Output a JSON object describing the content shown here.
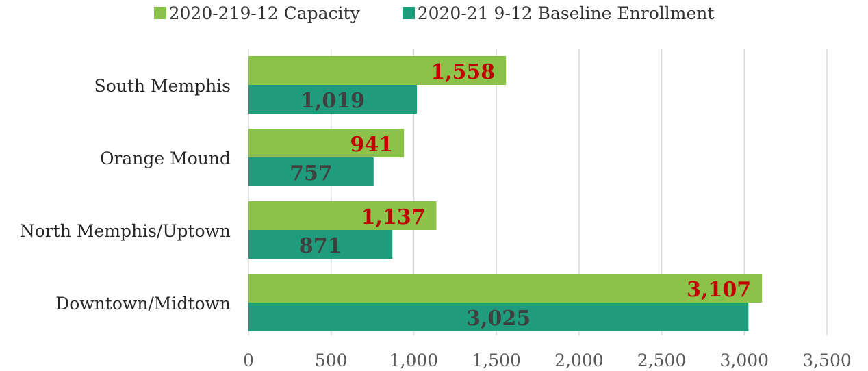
{
  "colors": {
    "capacity": "#8bc34a",
    "enrollment": "#1f9c7c",
    "capacity_label": "#c00000",
    "enrollment_label": "#404040",
    "grid": "#d9d9d9"
  },
  "chart_data": {
    "type": "bar",
    "orientation": "horizontal",
    "categories": [
      "South Memphis",
      "Orange Mound",
      "North Memphis/Uptown",
      "Downtown/Midtown"
    ],
    "series": [
      {
        "name": "2020-219-12 Capacity",
        "values": [
          1558,
          941,
          1137,
          3107
        ],
        "labels": [
          "1,558",
          "941",
          "1,137",
          "3,107"
        ]
      },
      {
        "name": "2020-21 9-12 Baseline Enrollment",
        "values": [
          1019,
          757,
          871,
          3025
        ],
        "labels": [
          "1,019",
          "757",
          "871",
          "3,025"
        ]
      }
    ],
    "xlim": [
      0,
      3500
    ],
    "xticks": [
      0,
      500,
      1000,
      1500,
      2000,
      2500,
      3000,
      3500
    ],
    "xtick_labels": [
      "0",
      "500",
      "1,000",
      "1,500",
      "2,000",
      "2,500",
      "3,000",
      "3,500"
    ],
    "grid": true,
    "legend": "top-center"
  }
}
